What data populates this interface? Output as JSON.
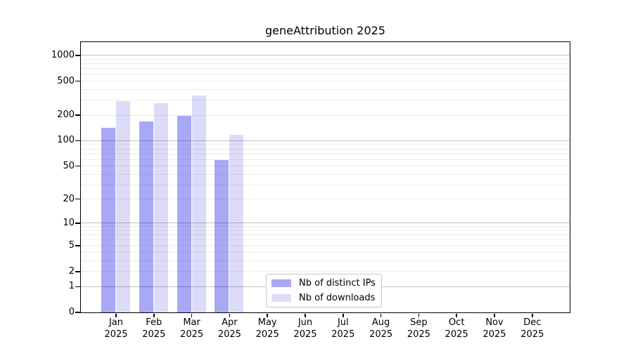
{
  "chart_data": {
    "type": "bar",
    "title": "geneAttribution 2025",
    "year_label": "2025",
    "categories": [
      "Jan",
      "Feb",
      "Mar",
      "Apr",
      "May",
      "Jun",
      "Jul",
      "Aug",
      "Sep",
      "Oct",
      "Nov",
      "Dec"
    ],
    "series": [
      {
        "name": "Nb of distinct IPs",
        "color": "#a8a8f5",
        "values": [
          142,
          167,
          195,
          59,
          0,
          0,
          0,
          0,
          0,
          0,
          0,
          0
        ]
      },
      {
        "name": "Nb of downloads",
        "color": "#dcdcf8",
        "values": [
          291,
          276,
          340,
          117,
          0,
          0,
          0,
          0,
          0,
          0,
          0,
          0
        ]
      }
    ],
    "y_axis": {
      "scale": "log1p",
      "tick_values": [
        0,
        1,
        2,
        5,
        10,
        20,
        50,
        100,
        200,
        500,
        1000
      ],
      "major_grid_values": [
        1,
        10,
        100,
        1000
      ],
      "top_value": 1430
    },
    "legend": {
      "position": "bottom-center"
    },
    "grid": "on",
    "colors": {
      "axis": "#000000",
      "major_grid": "rgba(0,0,0,0.24)",
      "minor_grid": "rgba(0,0,0,0.07)",
      "background": "#ffffff"
    }
  }
}
